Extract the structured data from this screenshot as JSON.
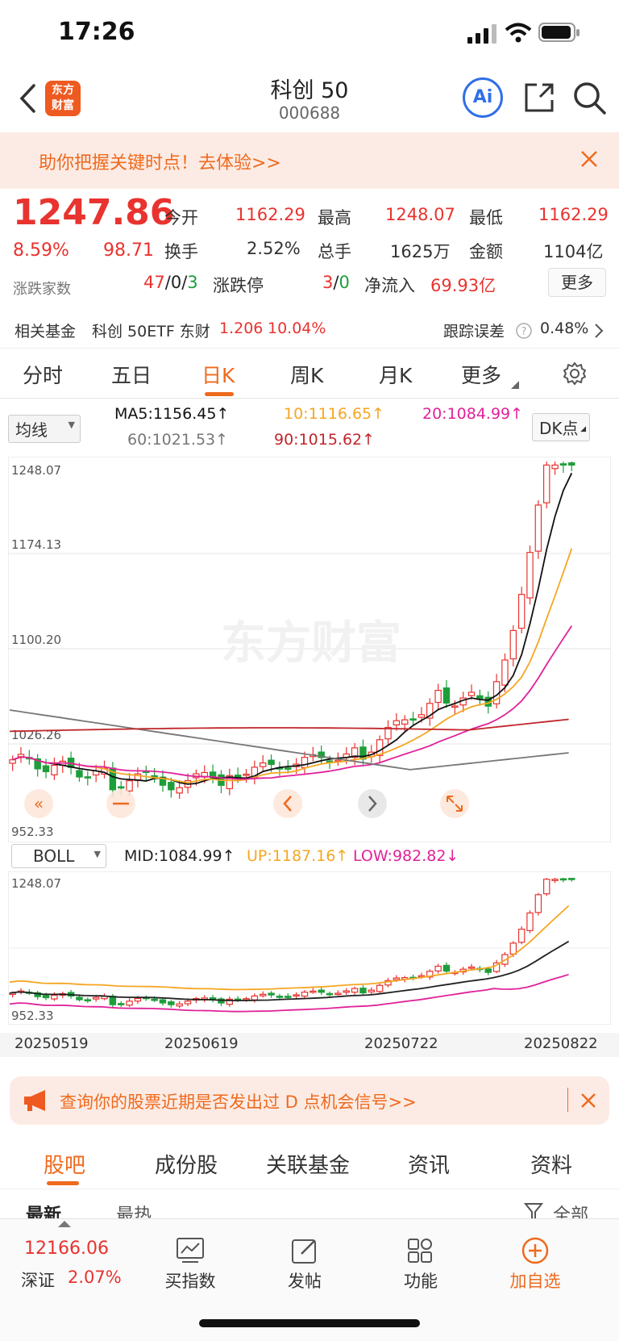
{
  "status": {
    "time": "17:26"
  },
  "header": {
    "logo_line1": "东方",
    "logo_line2": "财富",
    "title": "科创 50",
    "code": "000688",
    "ai_label": "Ai"
  },
  "banner": {
    "text": "助你把握关键时点！去体验>>"
  },
  "quote": {
    "price": "1247.86",
    "change_pct": "8.59%",
    "change": "98.71",
    "open_label": "今开",
    "open": "1162.29",
    "high_label": "最高",
    "high": "1248.07",
    "low_label": "最低",
    "low": "1162.29",
    "turnover_label": "换手",
    "turnover": "2.52%",
    "volume_label": "总手",
    "volume": "1625万",
    "amount_label": "金额",
    "amount": "1104亿",
    "breadth_label": "涨跌家数",
    "breadth_up": "47",
    "breadth_flat": "0",
    "breadth_down": "3",
    "limit_label": "涨跌停",
    "limit_up": "3",
    "limit_down": "0",
    "netflow_label": "净流入",
    "netflow": "69.93亿",
    "more_button": "更多"
  },
  "fund": {
    "label": "相关基金",
    "name": "科创 50ETF 东财",
    "price": "1.206",
    "pct": "10.04%",
    "track_label": "跟踪误差",
    "track_value": "0.48%"
  },
  "tabs": [
    "分时",
    "五日",
    "日K",
    "周K",
    "月K",
    "更多"
  ],
  "active_tab": "日K",
  "ma": {
    "selector": "均线",
    "ma5": "MA5:1156.45↑",
    "ma10": "10:1116.65↑",
    "ma20": "20:1084.99↑",
    "ma60": "60:1021.53↑",
    "ma90": "90:1015.62↑",
    "dk_button": "DK点"
  },
  "kchart": {
    "y_labels": [
      "1248.07",
      "1174.13",
      "1100.20",
      "1026.26",
      "952.33"
    ],
    "watermark": "东方财富"
  },
  "boll": {
    "selector": "BOLL",
    "mid": "MID:1084.99↑",
    "up": "UP:1187.16↑",
    "low": "LOW:982.82↓",
    "y_top": "1248.07",
    "y_bottom": "952.33"
  },
  "dates": [
    "20250519",
    "20250619",
    "20250722",
    "20250822"
  ],
  "promo": {
    "text": "查询你的股票近期是否发出过 D 点机会信号>>"
  },
  "subtabs": [
    "股吧",
    "成份股",
    "关联基金",
    "资讯",
    "资料"
  ],
  "feed": {
    "sort_new": "最新",
    "sort_hot": "最热",
    "filter_all": "全部"
  },
  "bottom": {
    "index_value": "12166.06",
    "index_name": "深证",
    "index_pct": "2.07%",
    "buy_index": "买指数",
    "post": "发帖",
    "features": "功能",
    "add_watch": "加自选"
  },
  "colors": {
    "up": "#e8332f",
    "down": "#1e9e3a",
    "accent": "#ee6a1e",
    "ma5": "#111111",
    "ma10": "#f5a623",
    "ma20": "#e0229a",
    "ma60": "#777777",
    "ma90": "#c0262b"
  }
}
